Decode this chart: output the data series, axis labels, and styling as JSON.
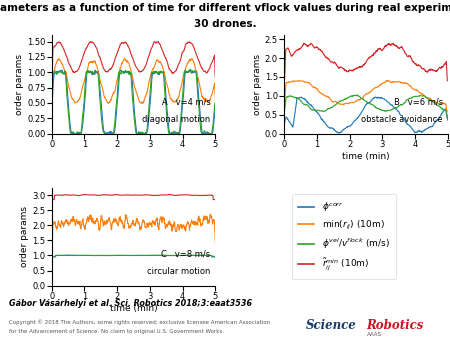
{
  "title_line1": "Order parameters as a function of time for different vflock values during real experiments with",
  "title_line2": "30 drones.",
  "title_fontsize": 7.5,
  "xlabel": "time (min)",
  "ylabel": "order params",
  "legend_labels": [
    "$\\phi^{corr}$",
    "min($r_{ij}$) (10m)",
    "$\\phi^{vel}/v^{flock}$ (m/s)",
    "$\\tilde{r}^{min}_{ij}$ (10m)"
  ],
  "colors": {
    "blue": "#1f77b4",
    "orange": "#ff7f0e",
    "green": "#2ca02c",
    "red": "#d62728"
  },
  "citation": "Gábor Vásárhelyi et al. Sci. Robotics 2018;3:eaat3536",
  "copyright_line1": "Copyright © 2018 The Authors, some rights reserved; exclusive licensee American Association",
  "copyright_line2": "for the Advancement of Science. No claim to original U.S. Government Works.",
  "seed": 42,
  "panel_A_label_line1": "A   v=4 m/s",
  "panel_A_label_line2": "diagonal motion",
  "panel_B_label_line1": "B   v=6 m/s",
  "panel_B_label_line2": "obstacle avoidance",
  "panel_C_label_line1": "C   v=8 m/s",
  "panel_C_label_line2": "circular motion"
}
